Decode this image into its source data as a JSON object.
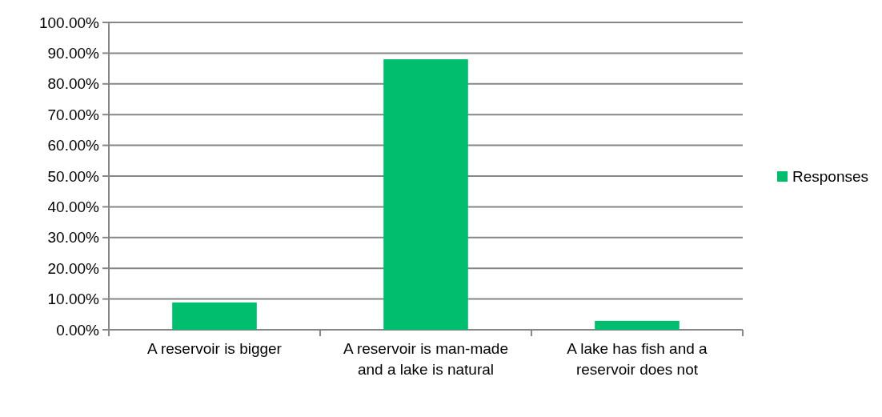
{
  "chart_data": {
    "type": "bar",
    "categories": [
      "A reservoir is bigger",
      "A reservoir is man-made and a lake is natural",
      "A lake has fish and a reservoir does not"
    ],
    "series": [
      {
        "name": "Responses",
        "color": "#00be6e",
        "values": [
          8.9,
          88,
          2.9
        ]
      }
    ],
    "ylim": [
      0,
      100
    ],
    "yticks": [
      {
        "value": 0,
        "label": "0.00%"
      },
      {
        "value": 10,
        "label": "10.00%"
      },
      {
        "value": 20,
        "label": "20.00%"
      },
      {
        "value": 30,
        "label": "30.00%"
      },
      {
        "value": 40,
        "label": "40.00%"
      },
      {
        "value": 50,
        "label": "50.00%"
      },
      {
        "value": 60,
        "label": "60.00%"
      },
      {
        "value": 70,
        "label": "70.00%"
      },
      {
        "value": 80,
        "label": "80.00%"
      },
      {
        "value": 90,
        "label": "90.00%"
      },
      {
        "value": 100,
        "label": "100.00%"
      }
    ],
    "grid": "y",
    "legend": "right"
  }
}
